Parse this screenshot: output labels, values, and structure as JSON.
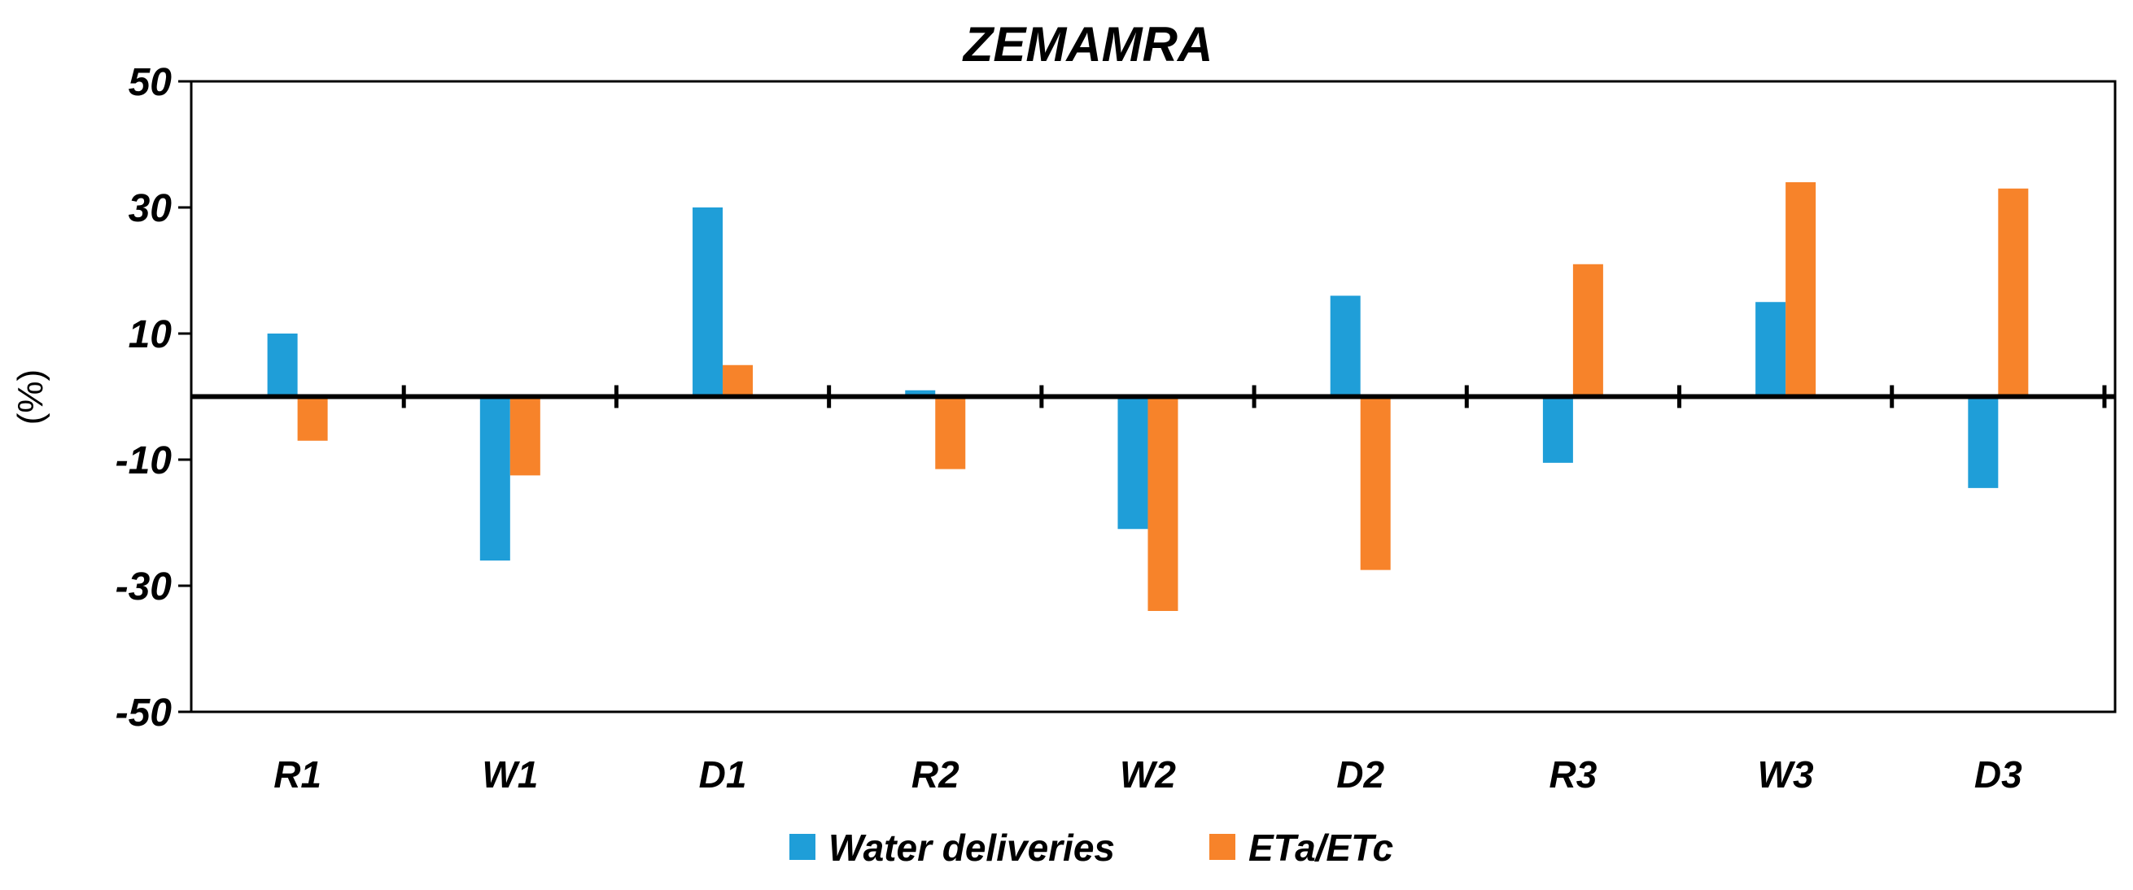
{
  "chart_data": {
    "type": "bar",
    "title": "ZEMAMRA",
    "xlabel": "",
    "ylabel": "(%)",
    "ylim": [
      -50,
      50
    ],
    "yticks": [
      50,
      30,
      10,
      -10,
      -30,
      -50
    ],
    "ytick_labels": [
      "50",
      "30",
      "10",
      "-10",
      "-30",
      "-50"
    ],
    "categories": [
      "R1",
      "W1",
      "D1",
      "R2",
      "W2",
      "D2",
      "R3",
      "W3",
      "D3"
    ],
    "series": [
      {
        "name": "Water deliveries",
        "color": "#1f9ed8",
        "values": [
          10,
          -26,
          30,
          1,
          -21,
          16,
          -10.5,
          15,
          -14.5
        ]
      },
      {
        "name": "ETa/ETc",
        "color": "#f7832a",
        "values": [
          -7,
          -12.5,
          5,
          -11.5,
          -34,
          -27.5,
          21,
          34,
          33
        ]
      }
    ],
    "legend_position": "bottom-center",
    "grid": false
  }
}
